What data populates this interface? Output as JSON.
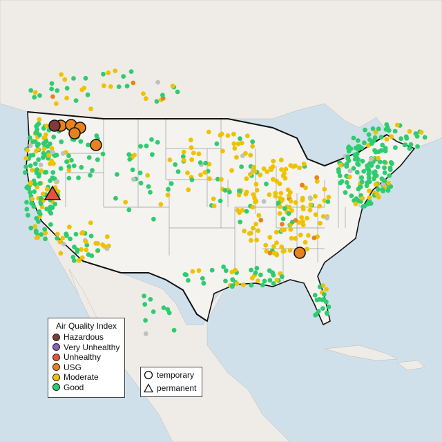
{
  "legend": {
    "title": "Air Quality Index",
    "items": [
      {
        "label": "Hazardous",
        "color": "#7e3b3b"
      },
      {
        "label": "Very Unhealthy",
        "color": "#8f5fb8"
      },
      {
        "label": "Unhealthy",
        "color": "#e8503a"
      },
      {
        "label": "USG",
        "color": "#e8821e"
      },
      {
        "label": "Moderate",
        "color": "#efc200"
      },
      {
        "label": "Good",
        "color": "#2ecc71"
      }
    ]
  },
  "type_legend": {
    "items": [
      {
        "label": "temporary",
        "symbol": "circle"
      },
      {
        "label": "permanent",
        "symbol": "triangle"
      }
    ]
  },
  "colors": {
    "ocean": "#cfe0ea",
    "land": "#efece7",
    "us_land": "#f4f3f0",
    "border": "#111111",
    "state_line": "#9a9a9a",
    "unknown_station": "#c0c0c0"
  },
  "summary": {
    "region": "Contiguous United States and neighboring areas",
    "large_markers": [
      {
        "category": "Hazardous",
        "symbol": "circle",
        "area": "Northern Washington"
      },
      {
        "category": "USG",
        "symbol": "circle",
        "area": "Northern Idaho / Montana"
      },
      {
        "category": "Unhealthy",
        "symbol": "triangle",
        "area": "Northern California"
      },
      {
        "category": "USG",
        "symbol": "circle",
        "area": "Northern Georgia"
      }
    ]
  }
}
